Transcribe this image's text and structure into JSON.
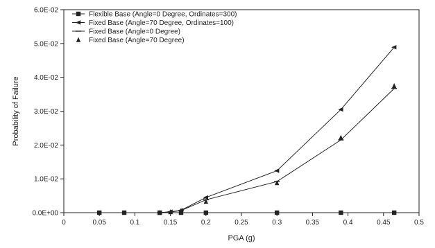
{
  "chart_data": {
    "type": "line",
    "title": "",
    "xlabel": "PGA (g)",
    "ylabel": "Probability of Failure",
    "xlim": [
      0,
      0.5
    ],
    "ylim": [
      0,
      0.06
    ],
    "x_ticks": [
      0,
      0.05,
      0.1,
      0.15,
      0.2,
      0.25,
      0.3,
      0.35,
      0.4,
      0.45,
      0.5
    ],
    "x_tick_labels": [
      "0",
      "0.05",
      "0.1",
      "0.15",
      "0.2",
      "0.25",
      "0.3",
      "0.35",
      "0.4",
      "0.45",
      "0.5"
    ],
    "y_ticks": [
      0,
      0.01,
      0.02,
      0.03,
      0.04,
      0.05,
      0.06
    ],
    "y_tick_labels": [
      "0.0E+00",
      "1.0E-02",
      "2.0E-02",
      "3.0E-02",
      "4.0E-02",
      "5.0E-02",
      "6.0E-02"
    ],
    "grid": false,
    "legend_position": "top-left",
    "series": [
      {
        "name": "Flexible Base (Angle=0 Degree, Ordinates=300)",
        "marker": "square",
        "line": "solid",
        "color": "#222222",
        "x": [
          0.05,
          0.085,
          0.135,
          0.165,
          0.2,
          0.3,
          0.39,
          0.465
        ],
        "y": [
          0,
          0,
          0,
          0,
          0,
          0,
          0,
          0
        ]
      },
      {
        "name": "Fixed Base (Angle=70 Degree, Ordinates=100)",
        "marker": "triangle-left",
        "line": "solid",
        "color": "#222222",
        "x": [
          0.135,
          0.15,
          0.165,
          0.2,
          0.3,
          0.39,
          0.465
        ],
        "y": [
          0,
          0.0003,
          0.0007,
          0.0045,
          0.0124,
          0.0305,
          0.0489
        ]
      },
      {
        "name": "Fixed Base (Angle=0 Degree)",
        "marker": "dash",
        "line": "solid",
        "color": "#222222",
        "x": [
          0.135,
          0.15,
          0.165,
          0.2,
          0.3,
          0.39,
          0.465
        ],
        "y": [
          0,
          0.0002,
          0.0006,
          0.0038,
          0.0092,
          0.0215,
          0.0367
        ]
      },
      {
        "name": "Fixed Base (Angle=70 Degree)",
        "marker": "triangle",
        "line": "none",
        "color": "#222222",
        "x": [
          0.135,
          0.15,
          0.165,
          0.2,
          0.3,
          0.39,
          0.465
        ],
        "y": [
          0,
          0.0002,
          0.0006,
          0.0033,
          0.0088,
          0.0222,
          0.0375
        ]
      }
    ]
  }
}
